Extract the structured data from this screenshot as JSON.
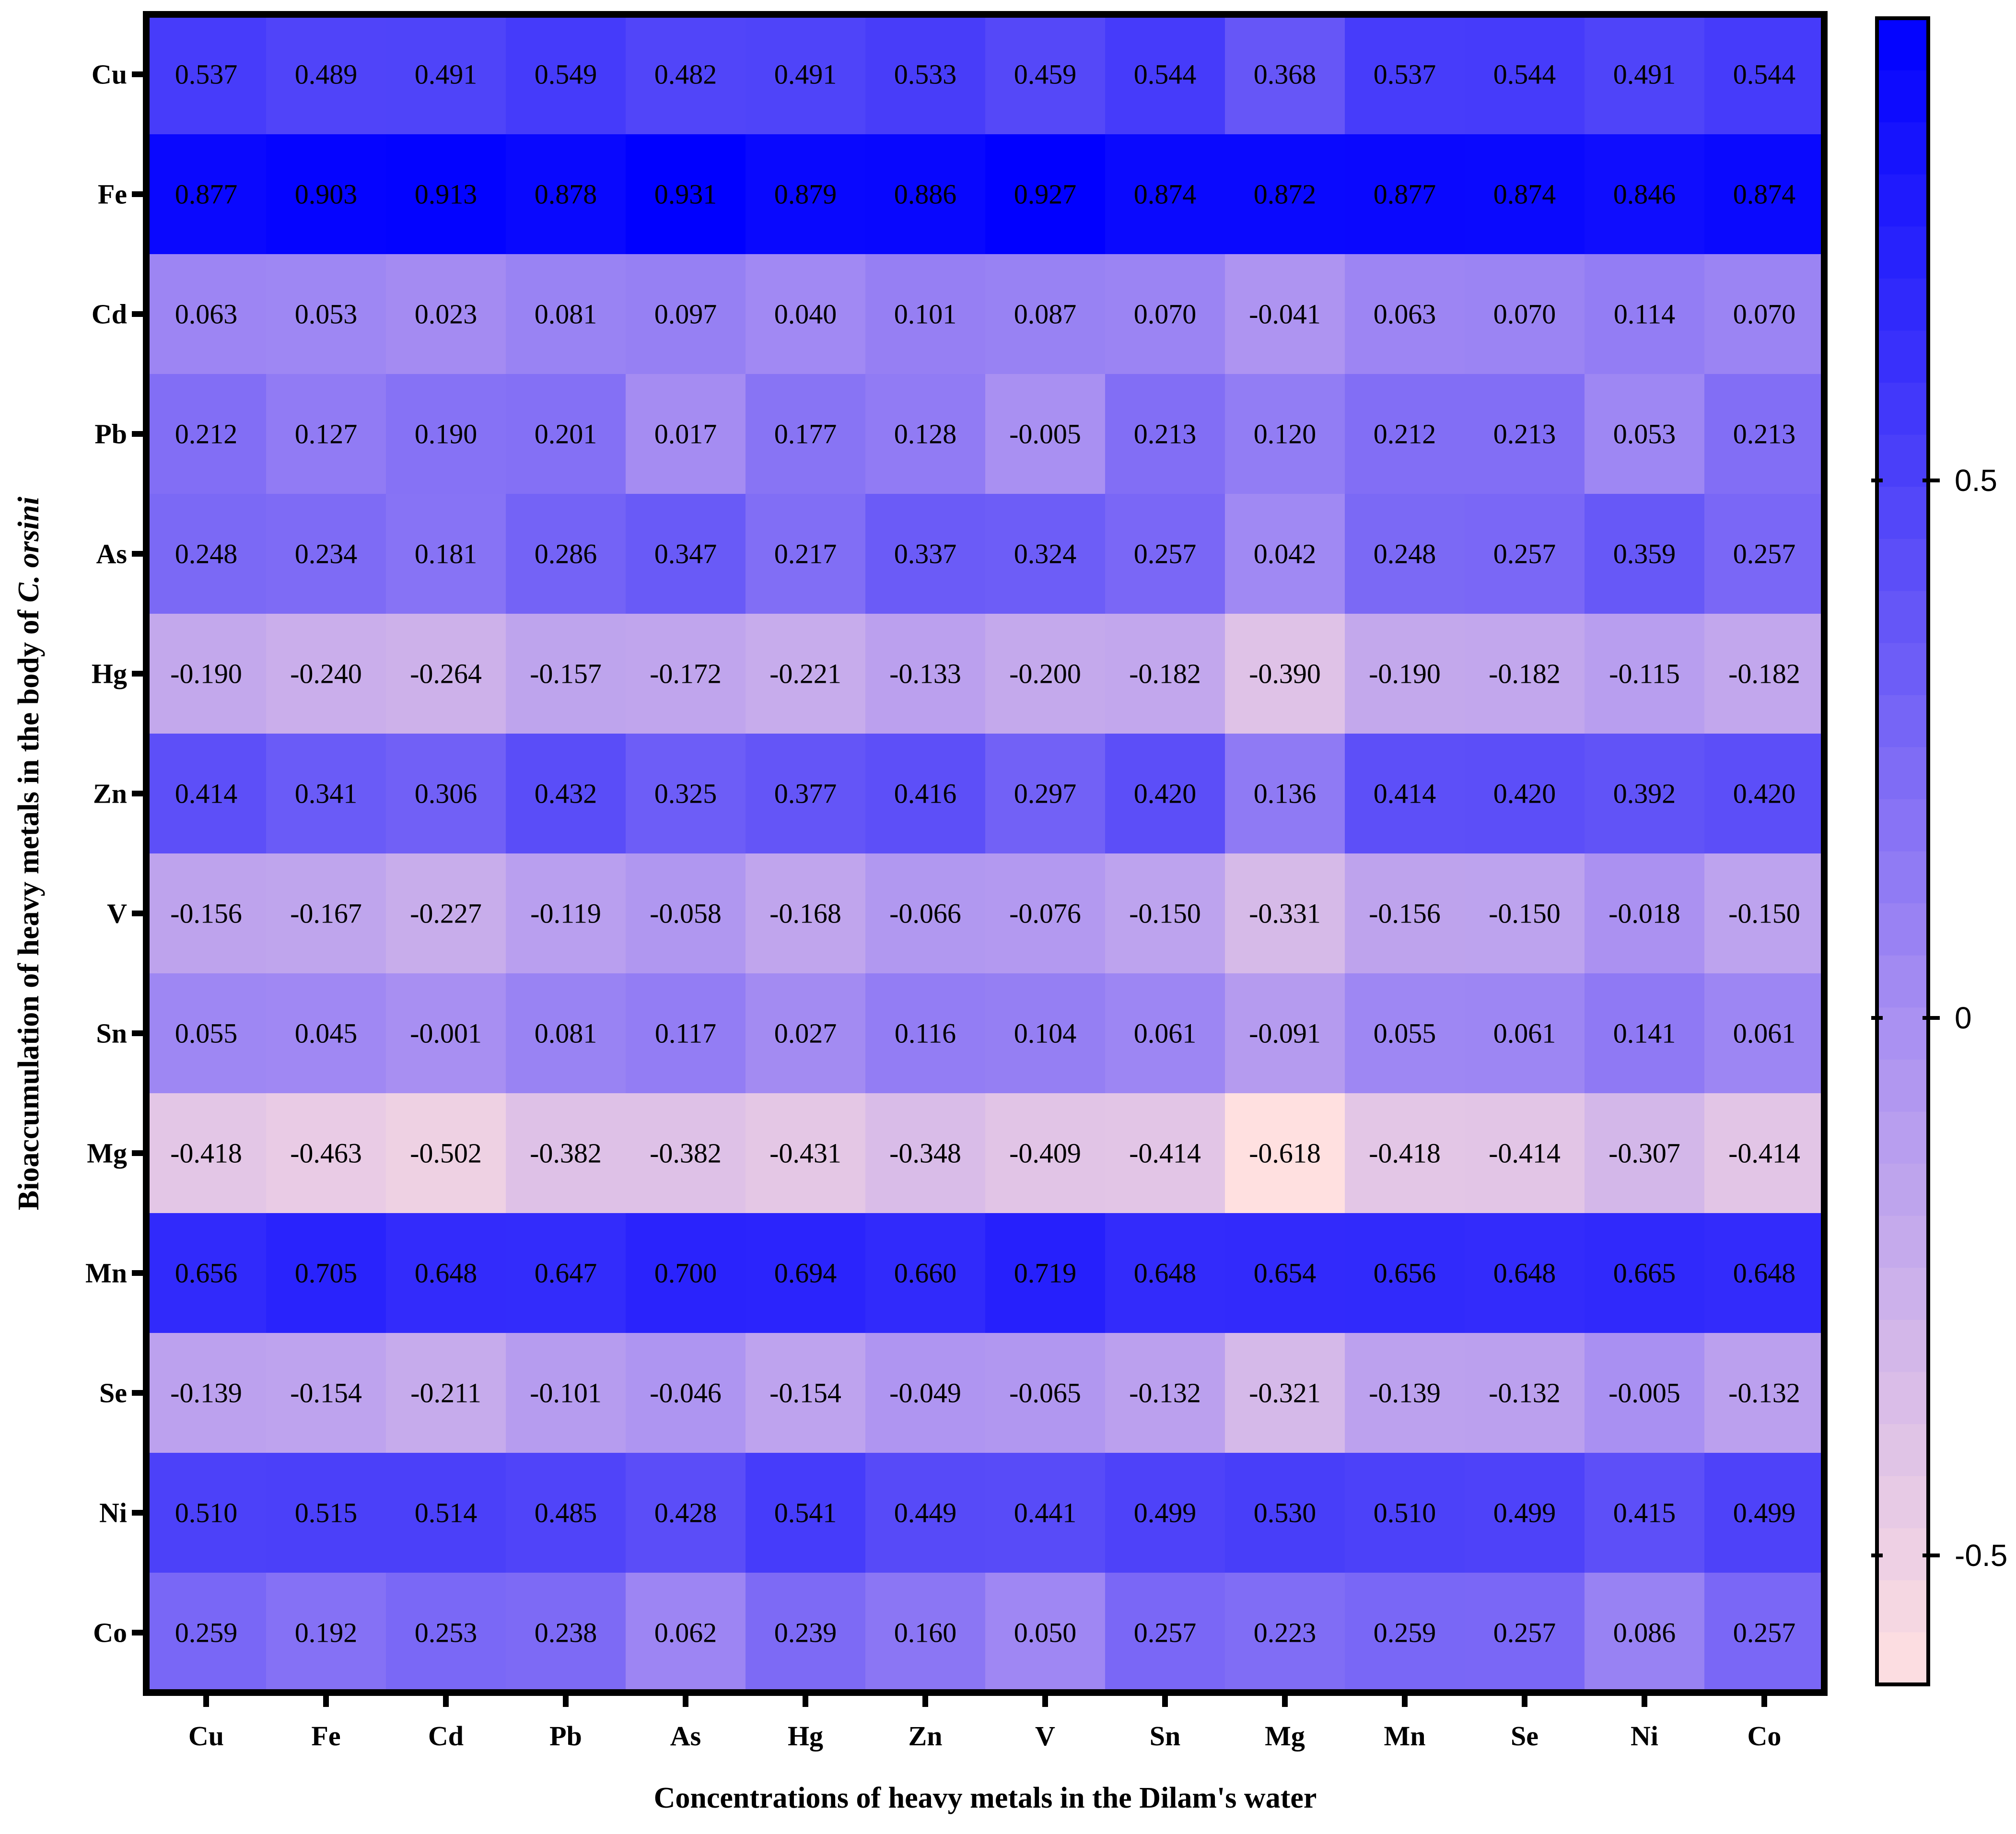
{
  "chart_data": {
    "type": "heatmap",
    "xlabel": "Concentrations of heavy metals in the Dilam's water",
    "ylabel_prefix": "Bioaccumulation of heavy metals in the body of ",
    "ylabel_italic": "C. orsini",
    "x_categories": [
      "Cu",
      "Fe",
      "Cd",
      "Pb",
      "As",
      "Hg",
      "Zn",
      "V",
      "Sn",
      "Mg",
      "Mn",
      "Se",
      "Ni",
      "Co"
    ],
    "y_categories": [
      "Cu",
      "Fe",
      "Cd",
      "Pb",
      "As",
      "Hg",
      "Zn",
      "V",
      "Sn",
      "Mg",
      "Mn",
      "Se",
      "Ni",
      "Co"
    ],
    "values": [
      [
        0.537,
        0.489,
        0.491,
        0.549,
        0.482,
        0.491,
        0.533,
        0.459,
        0.544,
        0.368,
        0.537,
        0.544,
        0.491,
        0.544
      ],
      [
        0.877,
        0.903,
        0.913,
        0.878,
        0.931,
        0.879,
        0.886,
        0.927,
        0.874,
        0.872,
        0.877,
        0.874,
        0.846,
        0.874
      ],
      [
        0.063,
        0.053,
        0.023,
        0.081,
        0.097,
        0.04,
        0.101,
        0.087,
        0.07,
        -0.041,
        0.063,
        0.07,
        0.114,
        0.07
      ],
      [
        0.212,
        0.127,
        0.19,
        0.201,
        0.017,
        0.177,
        0.128,
        -0.005,
        0.213,
        0.12,
        0.212,
        0.213,
        0.053,
        0.213
      ],
      [
        0.248,
        0.234,
        0.181,
        0.286,
        0.347,
        0.217,
        0.337,
        0.324,
        0.257,
        0.042,
        0.248,
        0.257,
        0.359,
        0.257
      ],
      [
        -0.19,
        -0.24,
        -0.264,
        -0.157,
        -0.172,
        -0.221,
        -0.133,
        -0.2,
        -0.182,
        -0.39,
        -0.19,
        -0.182,
        -0.115,
        -0.182
      ],
      [
        0.414,
        0.341,
        0.306,
        0.432,
        0.325,
        0.377,
        0.416,
        0.297,
        0.42,
        0.136,
        0.414,
        0.42,
        0.392,
        0.42
      ],
      [
        -0.156,
        -0.167,
        -0.227,
        -0.119,
        -0.058,
        -0.168,
        -0.066,
        -0.076,
        -0.15,
        -0.331,
        -0.156,
        -0.15,
        -0.018,
        -0.15
      ],
      [
        0.055,
        0.045,
        -0.001,
        0.081,
        0.117,
        0.027,
        0.116,
        0.104,
        0.061,
        -0.091,
        0.055,
        0.061,
        0.141,
        0.061
      ],
      [
        -0.418,
        -0.463,
        -0.502,
        -0.382,
        -0.382,
        -0.431,
        -0.348,
        -0.409,
        -0.414,
        -0.618,
        -0.418,
        -0.414,
        -0.307,
        -0.414
      ],
      [
        0.656,
        0.705,
        0.648,
        0.647,
        0.7,
        0.694,
        0.66,
        0.719,
        0.648,
        0.654,
        0.656,
        0.648,
        0.665,
        0.648
      ],
      [
        -0.139,
        -0.154,
        -0.211,
        -0.101,
        -0.046,
        -0.154,
        -0.049,
        -0.065,
        -0.132,
        -0.321,
        -0.139,
        -0.132,
        -0.005,
        -0.132
      ],
      [
        0.51,
        0.515,
        0.514,
        0.485,
        0.428,
        0.541,
        0.449,
        0.441,
        0.499,
        0.53,
        0.51,
        0.499,
        0.415,
        0.499
      ],
      [
        0.259,
        0.192,
        0.253,
        0.238,
        0.062,
        0.239,
        0.16,
        0.05,
        0.257,
        0.223,
        0.259,
        0.257,
        0.086,
        0.257
      ]
    ],
    "colorbar": {
      "range": [
        -0.62,
        0.93
      ],
      "ticks": [
        0.5,
        0,
        -0.5
      ],
      "tick_labels": [
        "0.5",
        "0",
        "-0.5"
      ],
      "low_color": "#ffe0e0",
      "mid_color": "#a88ff2",
      "high_color": "#0000ff"
    }
  }
}
